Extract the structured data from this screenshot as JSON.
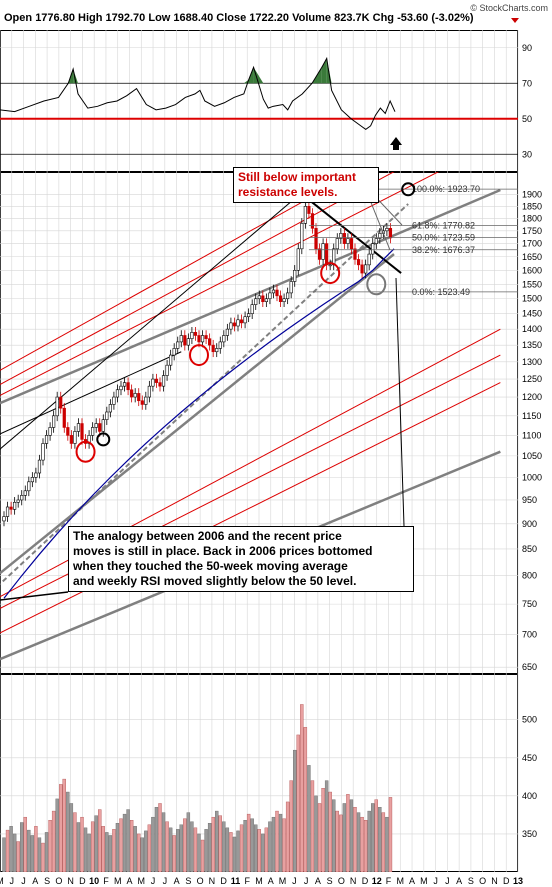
{
  "header": {
    "open_label": "Open",
    "open": "1776.80",
    "high_label": "High",
    "high": "1792.70",
    "low_label": "Low",
    "low": "1688.40",
    "close_label": "Close",
    "close": "1722.20",
    "volume_label": "Volume",
    "volume": "823.7K",
    "chg_label": "Chg",
    "chg": "-53.60 (-3.02%)",
    "copyright": "© StockCharts.com"
  },
  "colors": {
    "up": "#000000",
    "down": "#cc0000",
    "ma": "#000099",
    "red_line": "#dd0000",
    "gray_line": "#808080",
    "rsi_fill": "#3a7a3a",
    "vol_down": "#e8a0a0",
    "vol_up": "#999999",
    "grid": "#d6d6d6"
  },
  "chart_data": [
    {
      "type": "line",
      "panel": "rsi",
      "yticks": [
        90,
        70,
        50,
        30
      ],
      "ylim": [
        20,
        100
      ],
      "reference_lines": [
        70,
        50,
        30
      ],
      "highlight_line": 50,
      "x": [
        0,
        1.5,
        3,
        4.5,
        6,
        7,
        7.5,
        8,
        9,
        10,
        11,
        12,
        13,
        14,
        15,
        16,
        17,
        18,
        19,
        20,
        20.5,
        21,
        22,
        23,
        24,
        25,
        25.5,
        26,
        27,
        27.5,
        28,
        29,
        29.5,
        30,
        31,
        32,
        33,
        33.5,
        34,
        35,
        36,
        37
      ],
      "values": [
        55,
        54,
        57,
        60,
        62,
        70,
        78,
        64,
        56,
        57,
        59,
        60,
        63,
        67,
        58,
        55,
        56,
        58,
        62,
        64,
        66,
        60,
        57,
        59,
        62,
        64,
        72,
        79,
        61,
        56,
        57,
        58,
        55,
        60,
        64,
        70,
        79,
        84,
        66,
        55,
        50,
        46
      ],
      "tail_x": [
        37.5,
        38,
        38.5,
        39,
        39.5,
        40,
        40.5
      ],
      "tail_values": [
        44,
        46,
        52,
        56,
        53,
        60,
        54
      ]
    },
    {
      "type": "candlestick",
      "panel": "price",
      "log_scale": true,
      "yticks": [
        1900,
        1850,
        1800,
        1750,
        1700,
        1650,
        1600,
        1550,
        1500,
        1450,
        1400,
        1350,
        1300,
        1250,
        1200,
        1150,
        1100,
        1050,
        1000,
        950,
        900,
        850,
        800,
        750,
        700,
        650
      ],
      "ylim": [
        640,
        2000
      ],
      "xticks": [
        "M",
        "J",
        "J",
        "A",
        "S",
        "O",
        "N",
        "D",
        "10",
        "F",
        "M",
        "A",
        "M",
        "J",
        "J",
        "A",
        "S",
        "O",
        "N",
        "D",
        "11",
        "F",
        "M",
        "A",
        "M",
        "J",
        "J",
        "A",
        "S",
        "O",
        "N",
        "D",
        "12",
        "F",
        "M",
        "A",
        "M",
        "J",
        "J",
        "A",
        "S",
        "O",
        "N",
        "D",
        "13"
      ],
      "closes_weekly": [
        915,
        935,
        930,
        945,
        950,
        960,
        970,
        990,
        1000,
        1010,
        1040,
        1080,
        1100,
        1120,
        1150,
        1200,
        1170,
        1120,
        1100,
        1080,
        1110,
        1130,
        1090,
        1080,
        1100,
        1120,
        1130,
        1110,
        1140,
        1160,
        1180,
        1200,
        1220,
        1230,
        1240,
        1220,
        1200,
        1210,
        1190,
        1180,
        1200,
        1230,
        1250,
        1240,
        1230,
        1260,
        1290,
        1320,
        1340,
        1360,
        1380,
        1350,
        1370,
        1390,
        1380,
        1360,
        1380,
        1370,
        1350,
        1330,
        1340,
        1360,
        1380,
        1400,
        1420,
        1410,
        1430,
        1420,
        1440,
        1450,
        1480,
        1500,
        1510,
        1490,
        1500,
        1520,
        1530,
        1510,
        1490,
        1500,
        1520,
        1560,
        1600,
        1680,
        1780,
        1850,
        1820,
        1760,
        1680,
        1640,
        1700,
        1620,
        1620,
        1680,
        1720,
        1740,
        1700,
        1720,
        1680,
        1640,
        1620,
        1590,
        1620,
        1660,
        1700,
        1720,
        1740,
        1750,
        1760,
        1722
      ],
      "ma": [
        760,
        800,
        840,
        880,
        920,
        960,
        1000,
        1040,
        1080,
        1120,
        1160,
        1200,
        1240,
        1280,
        1320,
        1360,
        1400,
        1440,
        1480,
        1520,
        1560,
        1600,
        1640,
        1680
      ],
      "ma_x": [
        0,
        5,
        10,
        15,
        20,
        25,
        30,
        35,
        40,
        45,
        50,
        55,
        60,
        65,
        70,
        75,
        80,
        85,
        90,
        95,
        100,
        104,
        107,
        110
      ],
      "fib_levels": [
        {
          "label": "100.0%: 1923.70",
          "value": 1923.7
        },
        {
          "label": "61.8%: 1770.82",
          "value": 1770.82
        },
        {
          "label": "50.0%: 1723.59",
          "value": 1723.59
        },
        {
          "label": "38.2%: 1676.37",
          "value": 1676.37
        },
        {
          "label": "0.0%: 1523.49",
          "value": 1523.49
        }
      ],
      "highlight_circles": [
        {
          "color": "red",
          "x": 23,
          "value": 1060
        },
        {
          "color": "black",
          "x": 28,
          "value": 1090
        },
        {
          "color": "red",
          "x": 55,
          "value": 1320
        },
        {
          "color": "red",
          "x": 92,
          "value": 1590
        },
        {
          "color": "gray",
          "x": 105,
          "value": 1550
        },
        {
          "color": "black",
          "x": 114,
          "value": 1923
        }
      ]
    },
    {
      "type": "bar",
      "panel": "volume",
      "yticks": [
        500,
        450,
        400,
        350
      ],
      "ylim": [
        300,
        560
      ],
      "values": [
        345,
        355,
        360,
        350,
        340,
        365,
        372,
        355,
        348,
        360,
        345,
        338,
        352,
        368,
        380,
        396,
        415,
        422,
        405,
        390,
        378,
        365,
        372,
        358,
        350,
        366,
        374,
        382,
        360,
        352,
        348,
        356,
        364,
        370,
        376,
        382,
        368,
        360,
        350,
        345,
        354,
        362,
        372,
        385,
        390,
        378,
        366,
        358,
        348,
        356,
        362,
        370,
        378,
        366,
        358,
        350,
        342,
        356,
        364,
        372,
        380,
        374,
        366,
        358,
        352,
        346,
        354,
        362,
        368,
        376,
        370,
        362,
        356,
        350,
        358,
        366,
        372,
        380,
        376,
        370,
        392,
        420,
        460,
        480,
        520,
        490,
        440,
        420,
        400,
        390,
        410,
        420,
        405,
        395,
        380,
        375,
        390,
        402,
        395,
        385,
        378,
        372,
        368,
        380,
        390,
        395,
        385,
        378,
        372,
        398
      ],
      "down_mask": [
        0,
        1,
        0,
        0,
        1,
        0,
        1,
        0,
        0,
        1,
        0,
        1,
        0,
        1,
        1,
        0,
        1,
        1,
        0,
        0,
        1,
        0,
        1,
        0,
        0,
        1,
        0,
        1,
        1,
        0,
        0,
        1,
        0,
        1,
        0,
        0,
        1,
        0,
        1,
        0,
        0,
        1,
        0,
        0,
        1,
        0,
        1,
        0,
        1,
        0,
        0,
        1,
        0,
        0,
        1,
        0,
        1,
        0,
        0,
        1,
        0,
        1,
        0,
        0,
        1,
        0,
        0,
        1,
        0,
        1,
        0,
        0,
        1,
        0,
        1,
        0,
        0,
        1,
        0,
        1,
        1,
        1,
        0,
        1,
        1,
        1,
        0,
        1,
        0,
        1,
        1,
        0,
        1,
        0,
        1,
        1,
        0,
        1,
        0,
        1,
        0,
        1,
        1,
        0,
        0,
        1,
        0,
        1,
        0,
        1
      ]
    }
  ],
  "annotations": {
    "resistance_note": "Still below important\nresistance levels.",
    "analogy_note": "The analogy between 2006 and the recent price\nmoves is still in place. Back in 2006 prices bottomed\nwhen they touched the 50-week moving average\nand weekly RSI moved slightly below the 50 level."
  }
}
